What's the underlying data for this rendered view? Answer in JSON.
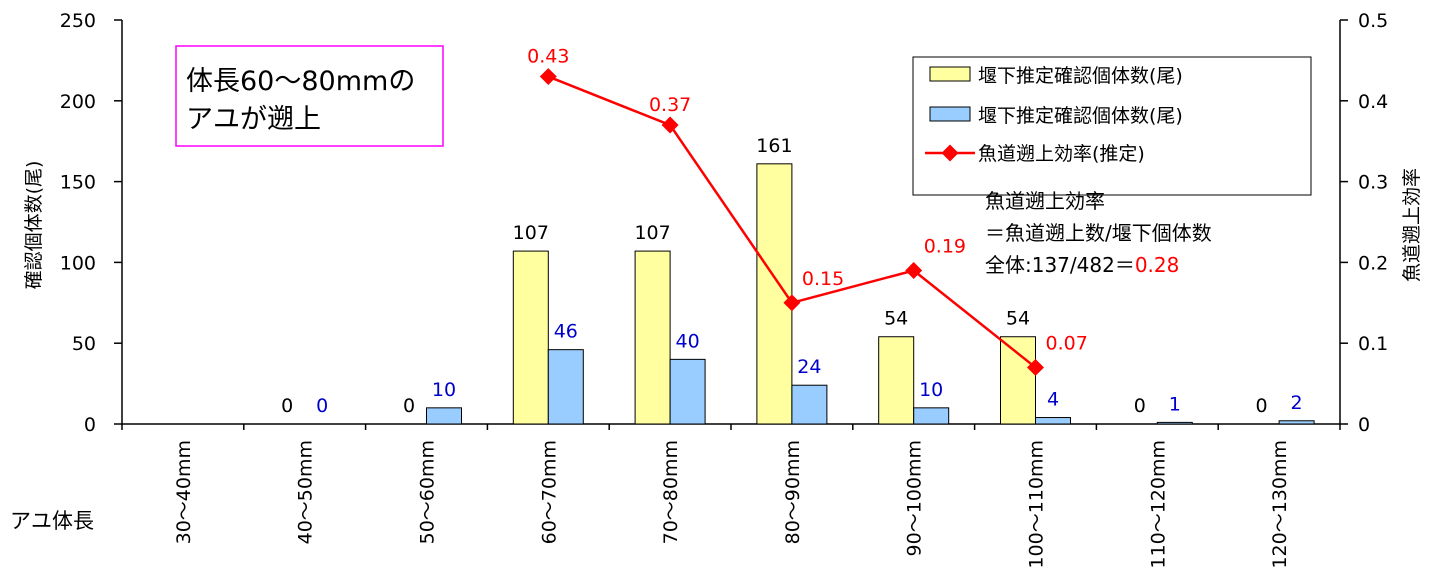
{
  "chart_data": {
    "type": "bar",
    "categories": [
      "30〜40mm",
      "40〜50mm",
      "50〜60mm",
      "60〜70mm",
      "70〜80mm",
      "80〜90mm",
      "90〜100mm",
      "100〜110mm",
      "110〜120mm",
      "120〜130mm"
    ],
    "series": [
      {
        "name": "堰下推定確認個体数(尾)",
        "type": "bar",
        "axis": "left",
        "color": "#ffffa0",
        "values": [
          null,
          0,
          0,
          107,
          107,
          161,
          54,
          54,
          0,
          0
        ],
        "labels": [
          "",
          "0",
          "0",
          "107",
          "107",
          "161",
          "54",
          "54",
          "0",
          "0"
        ]
      },
      {
        "name": "堰下推定確認個体数(尾)",
        "type": "bar",
        "axis": "left",
        "color": "#99ccff",
        "values": [
          null,
          0,
          10,
          46,
          40,
          24,
          10,
          4,
          1,
          2
        ],
        "labels": [
          "",
          "0",
          "10",
          "46",
          "40",
          "24",
          "10",
          "4",
          "1",
          "2"
        ]
      },
      {
        "name": "魚道遡上効率(推定)",
        "type": "line",
        "axis": "right",
        "color": "#ff0000",
        "values": [
          null,
          null,
          null,
          0.43,
          0.37,
          0.15,
          0.19,
          0.07,
          null,
          null
        ],
        "labels": [
          "",
          "",
          "",
          "0.43",
          "0.37",
          "0.15",
          "0.19",
          "0.07",
          "",
          ""
        ]
      }
    ],
    "ylabel": "確認個体数(尾)",
    "y2label": "魚道遡上効率",
    "xlabel": "アユ体長",
    "ylim": [
      0,
      250
    ],
    "y2lim": [
      0,
      0.5
    ],
    "yticks": [
      "0",
      "50",
      "100",
      "150",
      "200",
      "250"
    ],
    "y2ticks": [
      "0",
      "0.1",
      "0.2",
      "0.3",
      "0.4",
      "0.5"
    ],
    "legend_position": "top-right",
    "annotation_box": {
      "line1": "体長60〜80mmの",
      "line2": "アユが遡上"
    },
    "efficiency_note": {
      "line1": "魚道遡上効率",
      "line2": "＝魚道遡上数/堰下個体数",
      "line3_prefix": "全体:137/482＝",
      "line3_value": "0.28"
    },
    "colors": {
      "label_blue": "#0000cc",
      "label_red": "#ff0000",
      "box_border": "#ff00ff"
    }
  }
}
